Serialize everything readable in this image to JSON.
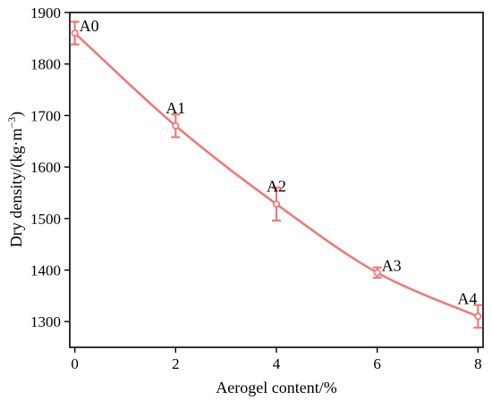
{
  "chart_data": {
    "type": "line",
    "title": "",
    "xlabel": "Aerogel content/%",
    "ylabel_main": "Dry density/(kg·m",
    "ylabel_sup": "−3",
    "ylabel_close": ")",
    "xlim": [
      -0.1,
      8.1
    ],
    "ylim": [
      1250,
      1900
    ],
    "xticks": [
      0,
      2,
      4,
      6,
      8
    ],
    "xtick_labels": [
      "0",
      "2",
      "4",
      "6",
      "8"
    ],
    "yticks": [
      1300,
      1400,
      1500,
      1600,
      1700,
      1800,
      1900
    ],
    "ytick_labels": [
      "1300",
      "1400",
      "1500",
      "1600",
      "1700",
      "1800",
      "1900"
    ],
    "grid": false,
    "line_color": "#f07878",
    "series": [
      {
        "x": [
          0,
          2,
          4,
          6,
          8
        ],
        "y": [
          1860,
          1680,
          1528,
          1395,
          1310
        ],
        "error": [
          22,
          22,
          32,
          10,
          22
        ],
        "labels": [
          "A0",
          "A1",
          "A2",
          "A3",
          "A4"
        ]
      }
    ]
  }
}
